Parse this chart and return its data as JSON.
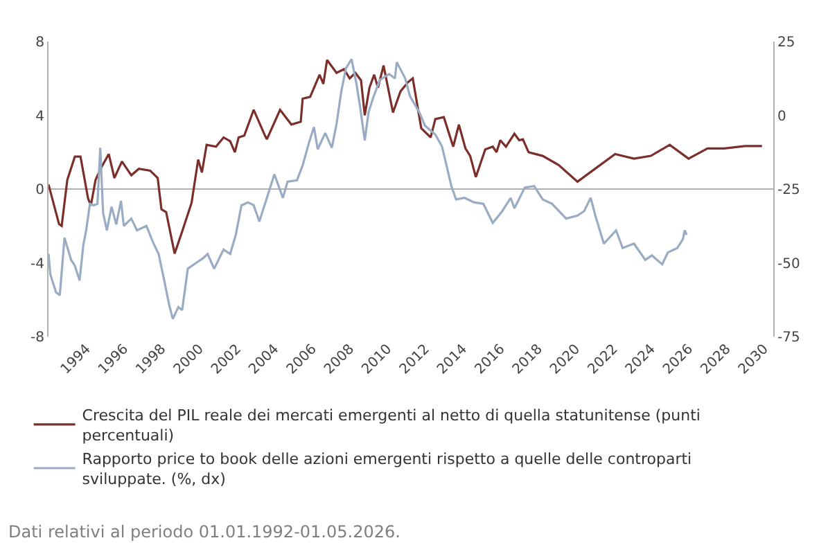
{
  "chart_data": {
    "type": "line",
    "xlim": [
      1992,
      2030.5
    ],
    "xticks": [
      1994,
      1996,
      1998,
      2000,
      2002,
      2004,
      2006,
      2008,
      2010,
      2012,
      2014,
      2016,
      2018,
      2020,
      2022,
      2024,
      2026,
      2028,
      2030
    ],
    "ylim": [
      -8,
      8
    ],
    "yticks": [
      -8,
      -4,
      0,
      4,
      8
    ],
    "y2lim": [
      -75,
      25
    ],
    "y2ticks": [
      -75,
      -50,
      -25,
      0,
      25
    ],
    "legend": "bottom",
    "grid": false,
    "marker": "none",
    "line_style": "solid",
    "ref_lines": [
      {
        "axis": "y",
        "value": 0,
        "color": "#b0b0b0"
      }
    ],
    "annotations": [
      "Dati relativi al periodo 01.01.1992-01.05.2026."
    ],
    "series": [
      {
        "name": "Crescita del PIL reale dei mercati emergenti al netto di quella statunitense (punti percentuali)",
        "color": "#7b2e2a",
        "x": [
          1992.0,
          1992.56,
          1992.7,
          1993.0,
          1993.4,
          1993.7,
          1994.1,
          1994.25,
          1994.5,
          1994.85,
          1995.2,
          1995.5,
          1995.9,
          1996.4,
          1996.8,
          1997.4,
          1997.8,
          1998.0,
          1998.25,
          1998.7,
          1999.1,
          1999.6,
          1999.95,
          2000.15,
          2000.4,
          2000.9,
          2001.3,
          2001.65,
          2001.9,
          2002.1,
          2002.4,
          2002.9,
          2003.5,
          2003.6,
          2004.3,
          2004.9,
          2005.4,
          2005.5,
          2005.9,
          2006.4,
          2006.6,
          2006.8,
          2007.3,
          2007.7,
          2008.0,
          2008.3,
          2008.6,
          2008.8,
          2009.05,
          2009.3,
          2009.5,
          2009.8,
          2010.3,
          2010.7,
          2011.1,
          2011.35,
          2011.8,
          2012.3,
          2012.55,
          2013.0,
          2013.5,
          2013.8,
          2014.15,
          2014.4,
          2014.7,
          2015.2,
          2015.6,
          2015.8,
          2016.0,
          2016.3,
          2016.75,
          2017.0,
          2017.2,
          2017.5,
          2018.25,
          2019.1,
          2020.1,
          2020.9,
          2022.1,
          2023.1,
          2024.0,
          2025.0,
          2026.0,
          2027.0,
          2027.9,
          2029.0,
          2029.9
        ],
        "values": [
          0.25,
          -1.9,
          -2.0,
          0.5,
          1.76,
          1.76,
          -0.5,
          -0.9,
          0.5,
          1.26,
          1.9,
          0.6,
          1.5,
          0.75,
          1.1,
          1.0,
          0.6,
          -1.1,
          -1.25,
          -3.5,
          -2.3,
          -0.75,
          1.6,
          0.9,
          2.4,
          2.3,
          2.8,
          2.6,
          2.0,
          2.8,
          2.9,
          4.3,
          2.9,
          2.7,
          4.3,
          3.5,
          3.65,
          4.9,
          5.0,
          6.2,
          5.7,
          7.0,
          6.3,
          6.5,
          6.0,
          6.3,
          5.9,
          4.0,
          5.5,
          6.2,
          5.5,
          6.7,
          4.15,
          5.3,
          5.8,
          6.0,
          3.3,
          2.8,
          3.8,
          3.9,
          2.3,
          3.5,
          2.2,
          1.8,
          0.65,
          2.15,
          2.3,
          2.0,
          2.65,
          2.3,
          3.0,
          2.65,
          2.7,
          2.0,
          1.8,
          1.3,
          0.4,
          1.0,
          1.9,
          1.65,
          1.8,
          2.4,
          1.65,
          2.2,
          2.2,
          2.33,
          2.33
        ]
      },
      {
        "name": "Rapporto price to book delle azioni emergenti rispetto a quelle delle controparti sviluppate. (%, dx)",
        "color": "#9aabc4",
        "axis": "y2",
        "x": [
          1992.0,
          1992.1,
          1992.4,
          1992.6,
          1992.85,
          1993.2,
          1993.4,
          1993.65,
          1993.85,
          1994.0,
          1994.2,
          1994.4,
          1994.6,
          1994.75,
          1994.9,
          1995.1,
          1995.35,
          1995.6,
          1995.85,
          1996.0,
          1996.4,
          1996.7,
          1997.2,
          1997.55,
          1997.85,
          1998.15,
          1998.4,
          1998.6,
          1998.9,
          1999.1,
          1999.4,
          1999.85,
          2000.2,
          2000.45,
          2000.8,
          2001.3,
          2001.65,
          2001.95,
          2002.25,
          2002.6,
          2002.9,
          2003.2,
          2003.6,
          2004.0,
          2004.45,
          2004.7,
          2005.2,
          2005.5,
          2005.85,
          2006.1,
          2006.3,
          2006.7,
          2007.05,
          2007.3,
          2007.55,
          2007.8,
          2008.1,
          2008.35,
          2008.55,
          2008.8,
          2009.0,
          2009.25,
          2009.6,
          2010.1,
          2010.4,
          2010.5,
          2010.95,
          2011.2,
          2011.7,
          2012.0,
          2012.55,
          2012.9,
          2013.2,
          2013.4,
          2013.65,
          2014.1,
          2014.6,
          2015.1,
          2015.6,
          2016.1,
          2016.55,
          2016.75,
          2017.3,
          2017.8,
          2018.25,
          2018.75,
          2019.5,
          2020.1,
          2020.45,
          2020.8,
          2021.05,
          2021.5,
          2022.15,
          2022.5,
          2023.1,
          2023.7,
          2024.05,
          2024.6,
          2024.9,
          2025.4,
          2025.7,
          2025.8,
          2025.9
        ],
        "values": [
          -47,
          -54,
          -60,
          -61,
          -41.5,
          -49,
          -51,
          -56,
          -44,
          -39,
          -30,
          -30.5,
          -30,
          -11,
          -33,
          -39,
          -31,
          -37,
          -29,
          -37.5,
          -35,
          -39,
          -37.5,
          -43,
          -47,
          -56,
          -64,
          -69,
          -65,
          -66,
          -52,
          -50,
          -48.5,
          -47,
          -52,
          -45.5,
          -47,
          -40.5,
          -30.5,
          -29.5,
          -30.5,
          -36,
          -28,
          -20,
          -28,
          -22.5,
          -22,
          -17,
          -9,
          -4,
          -11.5,
          -6,
          -11,
          -3,
          8,
          16,
          19,
          11,
          3,
          -8.5,
          1,
          6,
          12,
          14,
          12.5,
          18,
          12.5,
          6.5,
          1,
          -3.5,
          -6.5,
          -10.5,
          -18.5,
          -24,
          -28.5,
          -28,
          -29.5,
          -30,
          -36.5,
          -32.5,
          -28,
          -31.5,
          -24.5,
          -24,
          -28.5,
          -30,
          -35,
          -34,
          -32.5,
          -28,
          -34,
          -43.5,
          -39,
          -45,
          -43.5,
          -49,
          -47.5,
          -50.5,
          -46.5,
          -45,
          -42,
          -39,
          -40.5
        ]
      }
    ]
  }
}
